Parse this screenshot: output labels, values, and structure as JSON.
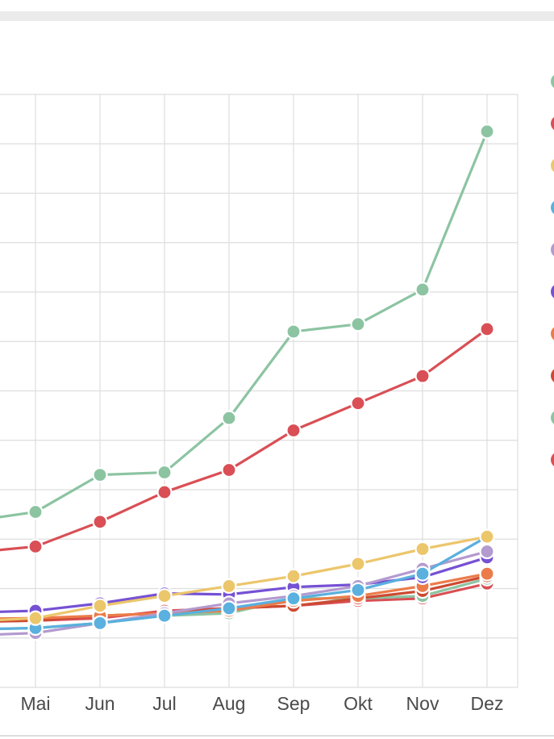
{
  "chart_data": {
    "type": "line",
    "categories": [
      "Mai",
      "Jun",
      "Jul",
      "Aug",
      "Sep",
      "Okt",
      "Nov",
      "Dez"
    ],
    "ylim": [
      0,
      12
    ],
    "grid": true,
    "legend_position": "right",
    "series": [
      {
        "color": "#8cc4a2",
        "values": [
          3.55,
          4.3,
          4.35,
          5.45,
          7.2,
          7.35,
          8.05,
          11.25
        ]
      },
      {
        "color": "#d94f55",
        "values": [
          2.85,
          3.35,
          3.95,
          4.4,
          5.2,
          5.75,
          6.3,
          7.25
        ]
      },
      {
        "color": "#ecc66b",
        "values": [
          1.4,
          1.65,
          1.85,
          2.05,
          2.25,
          2.5,
          2.8,
          3.05
        ]
      },
      {
        "color": "#5ab0de",
        "values": [
          1.2,
          1.3,
          1.45,
          1.6,
          1.8,
          1.97,
          2.3,
          3.05
        ]
      },
      {
        "color": "#b39acf",
        "values": [
          1.1,
          1.3,
          1.5,
          1.7,
          1.85,
          2.05,
          2.4,
          2.75
        ]
      },
      {
        "color": "#7651d4",
        "values": [
          1.55,
          1.7,
          1.9,
          1.88,
          2.03,
          2.08,
          2.23,
          2.63
        ]
      },
      {
        "color": "#ec7b4a",
        "values": [
          1.4,
          1.45,
          1.5,
          1.55,
          1.75,
          1.85,
          2.05,
          2.3
        ]
      },
      {
        "color": "#cc4a32",
        "values": [
          1.35,
          1.45,
          1.5,
          1.6,
          1.65,
          1.8,
          1.95,
          2.25
        ]
      },
      {
        "color": "#8cc4a2",
        "values": [
          1.2,
          1.3,
          1.45,
          1.5,
          1.8,
          1.8,
          1.85,
          2.2
        ]
      },
      {
        "color": "#d94f55",
        "values": [
          1.35,
          1.4,
          1.55,
          1.6,
          1.65,
          1.75,
          1.8,
          2.1
        ]
      }
    ]
  }
}
